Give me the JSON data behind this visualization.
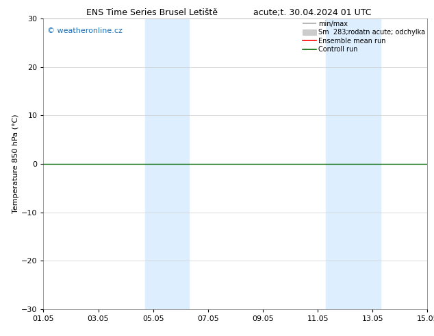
{
  "title_left": "ENS Time Series Brusel Letiště",
  "title_right": "acute;t. 30.04.2024 01 UTC",
  "ylabel": "Temperature 850 hPa (°C)",
  "copyright": "© weatheronline.cz",
  "ylim": [
    -30,
    30
  ],
  "yticks": [
    -30,
    -20,
    -10,
    0,
    10,
    20,
    30
  ],
  "xtick_labels": [
    "01.05",
    "03.05",
    "05.05",
    "07.05",
    "09.05",
    "11.05",
    "13.05",
    "15.05"
  ],
  "xtick_positions": [
    0,
    2,
    4,
    6,
    8,
    10,
    12,
    14
  ],
  "x_total_days": 14,
  "blue_bands": [
    {
      "x_start": 3.7,
      "x_end": 5.3
    },
    {
      "x_start": 10.3,
      "x_end": 12.3
    }
  ],
  "green_line_y": 0,
  "band_color": "#ddeeff",
  "background_color": "#ffffff",
  "grid_color": "#cccccc",
  "title_fontsize": 9,
  "axis_fontsize": 8,
  "tick_fontsize": 8,
  "legend_fontsize": 7,
  "copyright_color": "#1a6fba",
  "copyright_fontsize": 8
}
